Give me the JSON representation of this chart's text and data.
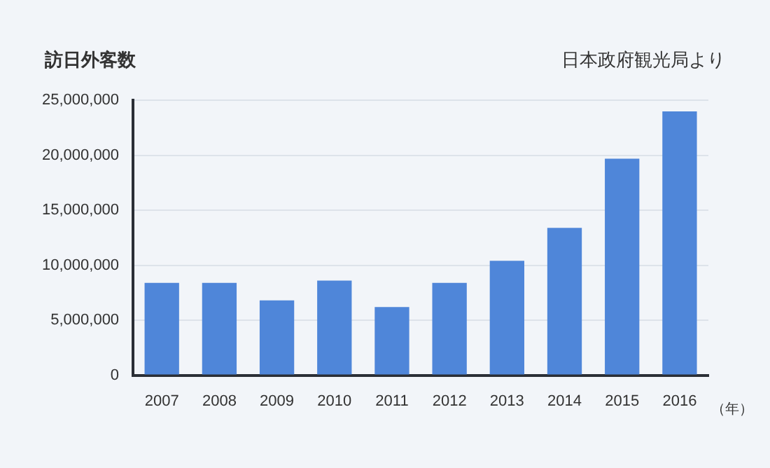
{
  "chart_data": {
    "type": "bar",
    "title": "訪日外客数",
    "xlabel": "（年）",
    "annotations": [
      "日本政府観光局より"
    ],
    "categories": [
      "2007",
      "2008",
      "2009",
      "2010",
      "2011",
      "2012",
      "2013",
      "2014",
      "2015",
      "2016"
    ],
    "values": [
      8400000,
      8400000,
      6800000,
      8600000,
      6200000,
      8400000,
      10400000,
      13400000,
      19700000,
      24000000
    ],
    "color": "#4f86d9",
    "ylim": [
      0,
      25000000
    ],
    "yticks": [
      0,
      {
        "value": 5000000,
        "label": "5,000,000"
      },
      {
        "value": 10000000,
        "label": "10,000,000"
      },
      {
        "value": 15000000,
        "label": "15,000,000"
      },
      {
        "value": 20000000,
        "label": "20,000,000"
      },
      {
        "value": 25000000,
        "label": "25,000,000"
      }
    ],
    "grid": "y"
  }
}
